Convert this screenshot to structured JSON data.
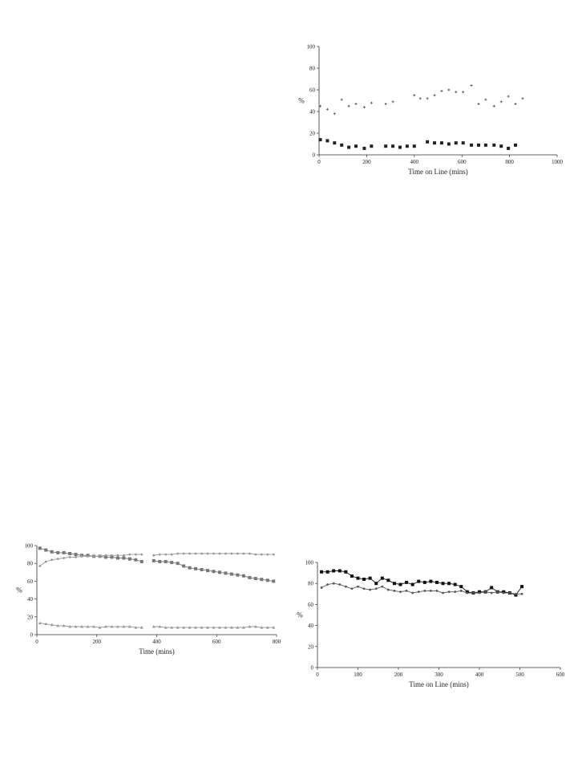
{
  "chart_data": [
    {
      "id": "chart-1",
      "type": "scatter",
      "title": "",
      "xlabel": "Time on Line (mins)",
      "ylabel": "%",
      "xlim": [
        0,
        1000
      ],
      "ylim": [
        0,
        100
      ],
      "xticks": [
        "0",
        "200",
        "400",
        "600",
        "800",
        "1000"
      ],
      "yticks": [
        "0",
        "20",
        "40",
        "60",
        "80",
        "100"
      ],
      "grid": false,
      "legend": "none",
      "series": [
        {
          "marker": "plus",
          "color": "#555555",
          "x": [
            5,
            35,
            65,
            95,
            125,
            155,
            190,
            220,
            280,
            310,
            400,
            425,
            455,
            485,
            515,
            545,
            575,
            605,
            640,
            670,
            700,
            735,
            765,
            795,
            825,
            855
          ],
          "y": [
            45,
            42,
            38,
            51,
            45,
            47,
            44,
            48,
            47,
            49,
            55,
            52,
            52,
            55,
            59,
            60,
            58,
            58,
            64,
            47,
            51,
            45,
            49,
            54,
            47,
            52
          ]
        },
        {
          "marker": "square",
          "color": "#222222",
          "x": [
            5,
            35,
            65,
            95,
            125,
            155,
            190,
            220,
            280,
            310,
            340,
            370,
            400,
            455,
            485,
            515,
            545,
            575,
            605,
            640,
            670,
            700,
            735,
            765,
            795,
            825
          ],
          "y": [
            14,
            13,
            11,
            9,
            7,
            8,
            6,
            8,
            8,
            8,
            7,
            8,
            8,
            12,
            11,
            11,
            10,
            11,
            11,
            9,
            9,
            9,
            9,
            8,
            6,
            9
          ]
        }
      ]
    },
    {
      "id": "chart-2",
      "type": "line",
      "title": "",
      "xlabel": "Time (mins)",
      "ylabel": "%",
      "xlim": [
        0,
        800
      ],
      "ylim": [
        0,
        100
      ],
      "xticks": [
        "0",
        "200",
        "400",
        "600",
        "800"
      ],
      "yticks": [
        "0",
        "20",
        "40",
        "60",
        "80",
        "100"
      ],
      "grid": false,
      "legend": "none",
      "series": [
        {
          "marker": "square",
          "color": "#777777",
          "x": [
            10,
            30,
            50,
            70,
            90,
            110,
            130,
            150,
            170,
            190,
            210,
            230,
            250,
            270,
            290,
            310,
            330,
            350,
            null,
            390,
            410,
            430,
            450,
            470,
            490,
            510,
            530,
            550,
            570,
            590,
            610,
            630,
            650,
            670,
            690,
            710,
            730,
            750,
            770,
            790
          ],
          "y": [
            97,
            95,
            93,
            92,
            92,
            91,
            90,
            89,
            89,
            88,
            88,
            87,
            87,
            86,
            86,
            85,
            84,
            82,
            null,
            83,
            82,
            82,
            81,
            80,
            77,
            75,
            74,
            73,
            72,
            71,
            70,
            69,
            68,
            67,
            66,
            64,
            63,
            62,
            61,
            60
          ]
        },
        {
          "marker": "dot",
          "color": "#999999",
          "x": [
            10,
            30,
            50,
            70,
            90,
            110,
            130,
            150,
            170,
            190,
            210,
            230,
            250,
            270,
            290,
            310,
            330,
            350,
            null,
            390,
            410,
            430,
            450,
            470,
            490,
            510,
            530,
            550,
            570,
            590,
            610,
            630,
            650,
            670,
            690,
            710,
            730,
            750,
            770,
            790
          ],
          "y": [
            77,
            82,
            84,
            85,
            86,
            87,
            87,
            88,
            88,
            88,
            88,
            89,
            89,
            89,
            89,
            90,
            90,
            90,
            null,
            89,
            90,
            90,
            90,
            91,
            91,
            91,
            91,
            91,
            91,
            91,
            91,
            91,
            91,
            91,
            91,
            91,
            90,
            90,
            90,
            90
          ]
        },
        {
          "marker": "triangle",
          "color": "#999999",
          "x": [
            10,
            30,
            50,
            70,
            90,
            110,
            130,
            150,
            170,
            190,
            210,
            230,
            250,
            270,
            290,
            310,
            330,
            350,
            null,
            390,
            410,
            430,
            450,
            470,
            490,
            510,
            530,
            550,
            570,
            590,
            610,
            630,
            650,
            670,
            690,
            710,
            730,
            750,
            770,
            790
          ],
          "y": [
            13,
            12,
            11,
            10,
            10,
            9,
            9,
            9,
            9,
            9,
            8,
            9,
            9,
            9,
            9,
            9,
            8,
            8,
            null,
            9,
            9,
            8,
            8,
            8,
            8,
            8,
            8,
            8,
            8,
            8,
            8,
            8,
            8,
            8,
            8,
            9,
            9,
            8,
            8,
            8
          ]
        }
      ]
    },
    {
      "id": "chart-3",
      "type": "line",
      "title": "",
      "xlabel": "Time on Line (mins)",
      "ylabel": "%",
      "xlim": [
        0,
        600
      ],
      "ylim": [
        0,
        100
      ],
      "xticks": [
        "0",
        "100",
        "200",
        "300",
        "400",
        "500",
        "600"
      ],
      "yticks": [
        "0",
        "20",
        "40",
        "60",
        "80",
        "100"
      ],
      "grid": false,
      "legend": "none",
      "series": [
        {
          "marker": "square",
          "color": "#111111",
          "x": [
            10,
            25,
            40,
            55,
            70,
            85,
            100,
            115,
            130,
            145,
            160,
            175,
            190,
            205,
            220,
            235,
            250,
            265,
            280,
            295,
            310,
            325,
            340,
            355,
            370,
            385,
            400,
            415,
            430,
            445,
            460,
            475,
            490,
            505
          ],
          "y": [
            91,
            91,
            92,
            92,
            91,
            87,
            85,
            84,
            85,
            80,
            85,
            83,
            80,
            79,
            81,
            79,
            82,
            81,
            82,
            81,
            80,
            80,
            79,
            77,
            72,
            71,
            72,
            72,
            76,
            72,
            72,
            71,
            69,
            77
          ]
        },
        {
          "marker": "dot",
          "color": "#555555",
          "x": [
            10,
            25,
            40,
            55,
            70,
            85,
            100,
            115,
            130,
            145,
            160,
            175,
            190,
            205,
            220,
            235,
            250,
            265,
            280,
            295,
            310,
            325,
            340,
            355,
            370,
            385,
            400,
            415,
            430,
            445,
            460,
            475,
            490,
            505
          ],
          "y": [
            76,
            79,
            80,
            79,
            77,
            75,
            77,
            75,
            74,
            75,
            77,
            74,
            73,
            72,
            73,
            71,
            72,
            73,
            73,
            73,
            71,
            72,
            72,
            73,
            71,
            71,
            71,
            72,
            71,
            72,
            71,
            71,
            70,
            70
          ]
        }
      ]
    }
  ]
}
